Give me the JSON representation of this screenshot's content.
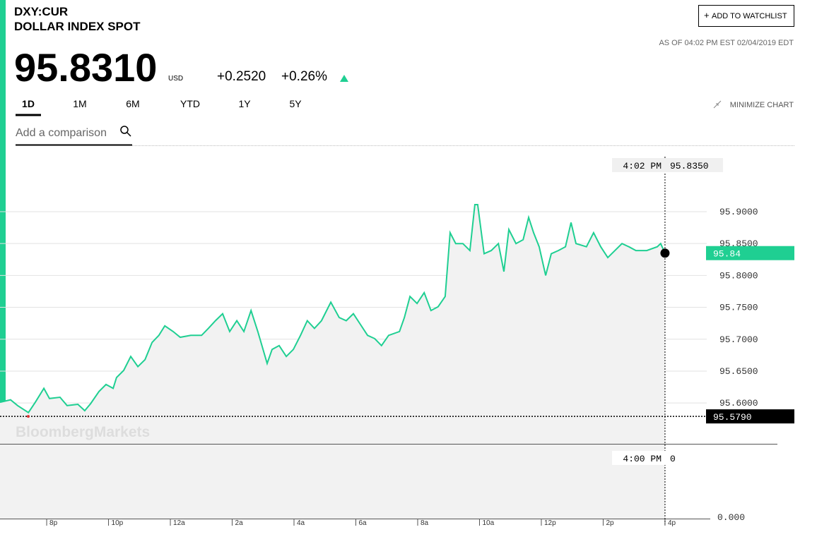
{
  "header": {
    "ticker": "DXY:CUR",
    "name": "DOLLAR INDEX SPOT",
    "watchlist_button": "ADD TO WATCHLIST",
    "as_of": "AS OF 04:02 PM EST 02/04/2019 EDT",
    "price": "95.8310",
    "currency": "USD",
    "change": "+0.2520",
    "change_pct": "+0.26%"
  },
  "tabs": [
    "1D",
    "1M",
    "6M",
    "YTD",
    "1Y",
    "5Y"
  ],
  "minimize": "MINIMIZE CHART",
  "search_placeholder": "Add a comparison",
  "watermark": "BloombergMarkets",
  "hover": {
    "time": "4:02 PM",
    "value": "95.8350"
  },
  "last_tag": "95.84",
  "prev_close": {
    "value": 95.579,
    "label": "95.5790"
  },
  "volume": {
    "time": "4:00 PM",
    "value": "0",
    "axis": "0.000"
  },
  "chart_data": {
    "type": "line",
    "x": [
      18.49,
      18.83,
      19.06,
      19.41,
      19.63,
      19.91,
      20.09,
      20.43,
      20.66,
      21.01,
      21.23,
      21.42,
      21.69,
      21.92,
      22.15,
      22.26,
      22.49,
      22.72,
      22.95,
      23.18,
      23.41,
      23.63,
      23.82,
      24.09,
      24.32,
      24.66,
      25.01,
      25.23,
      25.46,
      25.69,
      25.92,
      26.15,
      26.38,
      26.61,
      26.83,
      27.13,
      27.29,
      27.52,
      27.75,
      27.98,
      28.21,
      28.43,
      28.66,
      28.89,
      29.19,
      29.46,
      29.69,
      29.92,
      30.15,
      30.38,
      30.61,
      30.83,
      31.06,
      31.41,
      31.57,
      31.75,
      31.98,
      32.21,
      32.43,
      32.66,
      32.89,
      33.05,
      33.23,
      33.46,
      33.69,
      33.85,
      33.94,
      34.15,
      34.38,
      34.61,
      34.79,
      34.95,
      35.18,
      35.41,
      35.59,
      35.75,
      35.93,
      36.14,
      36.32,
      36.55,
      36.78,
      36.96,
      37.12,
      37.46,
      37.69,
      37.92,
      38.15,
      38.38,
      38.61,
      38.83,
      39.06,
      39.41,
      39.75,
      39.86,
      40.0
    ],
    "series": [
      {
        "color": "#1fcf92",
        "values": [
          95.601,
          95.605,
          95.596,
          95.585,
          95.601,
          95.623,
          95.607,
          95.609,
          95.596,
          95.598,
          95.588,
          95.599,
          95.618,
          95.629,
          95.623,
          95.64,
          95.651,
          95.673,
          95.657,
          95.668,
          95.695,
          95.706,
          95.721,
          95.712,
          95.703,
          95.706,
          95.706,
          95.717,
          95.729,
          95.74,
          95.712,
          95.729,
          95.712,
          95.745,
          95.712,
          95.662,
          95.684,
          95.69,
          95.673,
          95.684,
          95.706,
          95.729,
          95.717,
          95.729,
          95.758,
          95.734,
          95.729,
          95.74,
          95.723,
          95.706,
          95.701,
          95.69,
          95.706,
          95.712,
          95.734,
          95.767,
          95.756,
          95.773,
          95.745,
          95.751,
          95.767,
          95.867,
          95.85,
          95.85,
          95.839,
          95.911,
          95.911,
          95.834,
          95.839,
          95.85,
          95.806,
          95.872,
          95.85,
          95.856,
          95.891,
          95.867,
          95.845,
          95.8,
          95.834,
          95.839,
          95.845,
          95.883,
          95.85,
          95.845,
          95.867,
          95.845,
          95.828,
          95.839,
          95.85,
          95.845,
          95.839,
          95.839,
          95.845,
          95.85,
          95.835
        ]
      }
    ],
    "xlim": [
      18.49,
      41.35
    ],
    "ylim": [
      95.536,
      95.994
    ],
    "xticks": [
      {
        "value": 20,
        "label": "8p"
      },
      {
        "value": 22,
        "label": "10p"
      },
      {
        "value": 24,
        "label": "12a"
      },
      {
        "value": 26,
        "label": "2a"
      },
      {
        "value": 28,
        "label": "4a"
      },
      {
        "value": 30,
        "label": "6a"
      },
      {
        "value": 32,
        "label": "8a"
      },
      {
        "value": 34,
        "label": "10a"
      },
      {
        "value": 36,
        "label": "12p"
      },
      {
        "value": 38,
        "label": "2p"
      },
      {
        "value": 40,
        "label": "4p"
      }
    ],
    "yticks": [
      {
        "value": 95.6,
        "label": "95.6000"
      },
      {
        "value": 95.65,
        "label": "95.6500"
      },
      {
        "value": 95.7,
        "label": "95.7000"
      },
      {
        "value": 95.75,
        "label": "95.7500"
      },
      {
        "value": 95.8,
        "label": "95.8000"
      },
      {
        "value": 95.85,
        "label": "95.8500"
      },
      {
        "value": 95.9,
        "label": "95.9000"
      }
    ],
    "grid": true
  }
}
